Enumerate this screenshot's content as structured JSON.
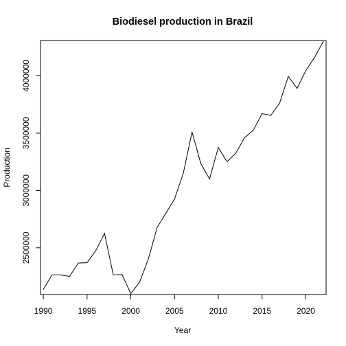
{
  "chart_data": {
    "type": "line",
    "title": "Biodiesel production in Brazil",
    "xlabel": "Year",
    "ylabel": "Production",
    "x": [
      1990,
      1991,
      1992,
      1993,
      1994,
      1995,
      1996,
      1997,
      1998,
      1999,
      2000,
      2001,
      2002,
      2003,
      2004,
      2005,
      2006,
      2007,
      2008,
      2009,
      2010,
      2011,
      2012,
      2013,
      2014,
      2015,
      2016,
      2017,
      2018,
      2019,
      2020,
      2021,
      2022
    ],
    "series": [
      {
        "values": [
          2137000,
          2263000,
          2263000,
          2250000,
          2367000,
          2370000,
          2475000,
          2625000,
          2262000,
          2266000,
          2100000,
          2200000,
          2400000,
          2675000,
          2800000,
          2925000,
          3150000,
          3510000,
          3235000,
          3100000,
          3375000,
          3250000,
          3325000,
          3460000,
          3525000,
          3670000,
          3655000,
          3760000,
          3995000,
          3890000,
          4045000,
          4160000,
          4300000
        ]
      }
    ],
    "xticks": [
      "1990",
      "1995",
      "2000",
      "2005",
      "2010",
      "2015",
      "2020"
    ],
    "yticks": [
      "2500000",
      "3000000",
      "3500000",
      "4000000"
    ],
    "xlim": [
      1989.68,
      2022.32
    ],
    "ylim": [
      2092000,
      4308000
    ],
    "grid": false,
    "line_color": "#000000"
  }
}
